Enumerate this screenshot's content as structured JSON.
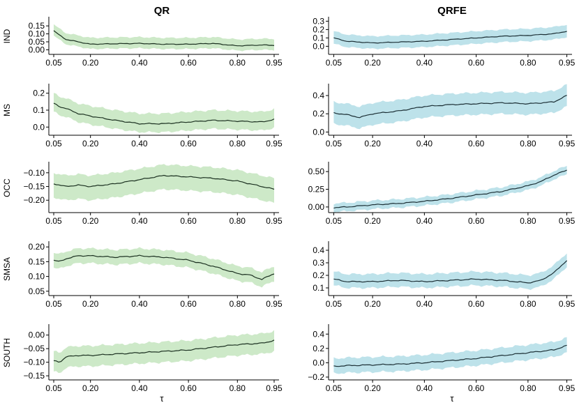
{
  "figure": {
    "columns": [
      {
        "title": "QR",
        "band_color": "#cde9c8",
        "line_color": "#1b3020"
      },
      {
        "title": "QRFE",
        "band_color": "#bde2ea",
        "line_color": "#1b2e34"
      }
    ],
    "xlabel": "τ"
  },
  "chart_data": [
    {
      "type": "line",
      "panel": "IND-QR",
      "row": 0,
      "col": 0,
      "ylabel": "IND",
      "xlim": [
        0.03,
        0.97
      ],
      "ylim": [
        -0.02,
        0.19
      ],
      "xticks": [
        0.05,
        0.2,
        0.4,
        0.6,
        0.8,
        0.95
      ],
      "xtick_labels": [
        "0.05",
        "0.20",
        "0.40",
        "0.60",
        "0.80",
        "0.95"
      ],
      "yticks": [
        0,
        0.05,
        0.1,
        0.15
      ],
      "ytick_labels": [
        "0.00",
        "0.05",
        "0.10",
        "0.15"
      ],
      "series": [
        {
          "name": "estimate",
          "x": [
            0.05,
            0.075,
            0.1,
            0.15,
            0.2,
            0.3,
            0.4,
            0.5,
            0.6,
            0.7,
            0.8,
            0.9,
            0.95
          ],
          "values": [
            0.12,
            0.09,
            0.065,
            0.05,
            0.035,
            0.038,
            0.04,
            0.035,
            0.035,
            0.04,
            0.025,
            0.03,
            0.028
          ]
        }
      ],
      "band": {
        "lower_offset": 0.03,
        "upper_offset": 0.04
      }
    },
    {
      "type": "line",
      "panel": "IND-QRFE",
      "row": 0,
      "col": 1,
      "ylabel": "",
      "xlim": [
        0.03,
        0.97
      ],
      "ylim": [
        -0.08,
        0.32
      ],
      "xticks": [
        0.05,
        0.2,
        0.4,
        0.6,
        0.8,
        0.95
      ],
      "xtick_labels": [
        "0.05",
        "0.20",
        "0.40",
        "0.60",
        "0.80",
        "0.95"
      ],
      "yticks": [
        0,
        0.1,
        0.2,
        0.3
      ],
      "ytick_labels": [
        "0.0",
        "0.1",
        "0.2",
        "0.3"
      ],
      "series": [
        {
          "name": "estimate",
          "x": [
            0.05,
            0.1,
            0.2,
            0.3,
            0.4,
            0.5,
            0.6,
            0.7,
            0.8,
            0.9,
            0.95
          ],
          "values": [
            0.1,
            0.06,
            0.04,
            0.05,
            0.06,
            0.08,
            0.1,
            0.12,
            0.13,
            0.15,
            0.18
          ]
        }
      ],
      "band": {
        "lower_offset": 0.07,
        "upper_offset": 0.08
      }
    },
    {
      "type": "line",
      "panel": "MS-QR",
      "row": 1,
      "col": 0,
      "ylabel": "MS",
      "xlim": [
        0.03,
        0.97
      ],
      "ylim": [
        -0.04,
        0.24
      ],
      "xticks": [
        0.05,
        0.2,
        0.4,
        0.6,
        0.8,
        0.95
      ],
      "xtick_labels": [
        "0.05",
        "0.20",
        "0.40",
        "0.60",
        "0.80",
        "0.95"
      ],
      "yticks": [
        0,
        0.1,
        0.2
      ],
      "ytick_labels": [
        "0.0",
        "0.1",
        "0.2"
      ],
      "series": [
        {
          "name": "estimate",
          "x": [
            0.05,
            0.075,
            0.1,
            0.15,
            0.2,
            0.3,
            0.4,
            0.5,
            0.6,
            0.7,
            0.8,
            0.9,
            0.95
          ],
          "values": [
            0.14,
            0.12,
            0.11,
            0.08,
            0.065,
            0.04,
            0.02,
            0.02,
            0.03,
            0.04,
            0.035,
            0.03,
            0.045
          ]
        }
      ],
      "band": {
        "lower_offset": 0.05,
        "upper_offset": 0.06
      }
    },
    {
      "type": "line",
      "panel": "MS-QRFE",
      "row": 1,
      "col": 1,
      "ylabel": "",
      "xlim": [
        0.03,
        0.97
      ],
      "ylim": [
        -0.02,
        0.5
      ],
      "xticks": [
        0.05,
        0.2,
        0.4,
        0.6,
        0.8,
        0.95
      ],
      "xtick_labels": [
        "0.05",
        "0.20",
        "0.40",
        "0.60",
        "0.80",
        "0.95"
      ],
      "yticks": [
        0,
        0.2,
        0.4
      ],
      "ytick_labels": [
        "0.0",
        "0.2",
        "0.4"
      ],
      "series": [
        {
          "name": "estimate",
          "x": [
            0.05,
            0.1,
            0.15,
            0.2,
            0.3,
            0.4,
            0.5,
            0.6,
            0.7,
            0.8,
            0.9,
            0.95
          ],
          "values": [
            0.21,
            0.19,
            0.16,
            0.2,
            0.23,
            0.28,
            0.3,
            0.31,
            0.32,
            0.31,
            0.33,
            0.4
          ]
        }
      ],
      "band": {
        "lower_offset": 0.12,
        "upper_offset": 0.12
      }
    },
    {
      "type": "line",
      "panel": "OCC-QR",
      "row": 2,
      "col": 0,
      "ylabel": "OCC",
      "xlim": [
        0.03,
        0.97
      ],
      "ylim": [
        -0.24,
        -0.07
      ],
      "xticks": [
        0.05,
        0.2,
        0.4,
        0.6,
        0.8,
        0.95
      ],
      "xtick_labels": [
        "0.05",
        "0.20",
        "0.40",
        "0.60",
        "0.80",
        "0.95"
      ],
      "yticks": [
        -0.1,
        -0.15,
        -0.2
      ],
      "ytick_labels": [
        "−0.10",
        "−0.15",
        "−0.20"
      ],
      "series": [
        {
          "name": "estimate",
          "x": [
            0.05,
            0.1,
            0.15,
            0.2,
            0.3,
            0.4,
            0.5,
            0.6,
            0.7,
            0.8,
            0.9,
            0.95
          ],
          "values": [
            -0.14,
            -0.15,
            -0.145,
            -0.15,
            -0.14,
            -0.125,
            -0.11,
            -0.115,
            -0.12,
            -0.13,
            -0.15,
            -0.16
          ]
        }
      ],
      "band": {
        "lower_offset": 0.05,
        "upper_offset": 0.04
      }
    },
    {
      "type": "line",
      "panel": "OCC-QRFE",
      "row": 2,
      "col": 1,
      "ylabel": "",
      "xlim": [
        0.03,
        0.97
      ],
      "ylim": [
        -0.06,
        0.6
      ],
      "xticks": [
        0.05,
        0.2,
        0.4,
        0.6,
        0.8,
        0.95
      ],
      "xtick_labels": [
        "0.05",
        "0.20",
        "0.40",
        "0.60",
        "0.80",
        "0.95"
      ],
      "yticks": [
        0,
        0.25,
        0.5
      ],
      "ytick_labels": [
        "0.00",
        "0.25",
        "0.50"
      ],
      "series": [
        {
          "name": "estimate",
          "x": [
            0.05,
            0.1,
            0.2,
            0.3,
            0.4,
            0.5,
            0.6,
            0.7,
            0.8,
            0.85,
            0.9,
            0.95
          ],
          "values": [
            -0.01,
            0.0,
            0.03,
            0.05,
            0.08,
            0.12,
            0.17,
            0.22,
            0.3,
            0.36,
            0.45,
            0.52
          ]
        }
      ],
      "band": {
        "lower_offset": 0.06,
        "upper_offset": 0.06
      }
    },
    {
      "type": "line",
      "panel": "SMSA-QR",
      "row": 3,
      "col": 0,
      "ylabel": "SMSA",
      "xlim": [
        0.03,
        0.97
      ],
      "ylim": [
        0.04,
        0.21
      ],
      "xticks": [
        0.05,
        0.2,
        0.4,
        0.6,
        0.8,
        0.95
      ],
      "xtick_labels": [
        "0.05",
        "0.20",
        "0.40",
        "0.60",
        "0.80",
        "0.95"
      ],
      "yticks": [
        0.05,
        0.1,
        0.15,
        0.2
      ],
      "ytick_labels": [
        "0.05",
        "0.10",
        "0.15",
        "0.20"
      ],
      "series": [
        {
          "name": "estimate",
          "x": [
            0.05,
            0.075,
            0.1,
            0.15,
            0.2,
            0.3,
            0.4,
            0.5,
            0.6,
            0.7,
            0.8,
            0.85,
            0.9,
            0.95
          ],
          "values": [
            0.155,
            0.15,
            0.16,
            0.17,
            0.17,
            0.165,
            0.17,
            0.165,
            0.155,
            0.135,
            0.11,
            0.105,
            0.09,
            0.11
          ]
        }
      ],
      "band": {
        "lower_offset": 0.025,
        "upper_offset": 0.025
      }
    },
    {
      "type": "line",
      "panel": "SMSA-QRFE",
      "row": 3,
      "col": 1,
      "ylabel": "",
      "xlim": [
        0.03,
        0.97
      ],
      "ylim": [
        0.05,
        0.45
      ],
      "xticks": [
        0.05,
        0.2,
        0.4,
        0.6,
        0.8,
        0.95
      ],
      "xtick_labels": [
        "0.05",
        "0.20",
        "0.40",
        "0.60",
        "0.80",
        "0.95"
      ],
      "yticks": [
        0.1,
        0.2,
        0.3,
        0.4
      ],
      "ytick_labels": [
        "0.1",
        "0.2",
        "0.3",
        "0.4"
      ],
      "series": [
        {
          "name": "estimate",
          "x": [
            0.05,
            0.1,
            0.2,
            0.3,
            0.4,
            0.5,
            0.6,
            0.7,
            0.8,
            0.85,
            0.9,
            0.95
          ],
          "values": [
            0.17,
            0.15,
            0.15,
            0.16,
            0.15,
            0.16,
            0.17,
            0.16,
            0.14,
            0.16,
            0.22,
            0.32
          ]
        }
      ],
      "band": {
        "lower_offset": 0.05,
        "upper_offset": 0.06
      }
    },
    {
      "type": "line",
      "panel": "SOUTH-QR",
      "row": 4,
      "col": 0,
      "ylabel": "SOUTH",
      "xlim": [
        0.03,
        0.97
      ],
      "ylim": [
        -0.16,
        0.03
      ],
      "xticks": [
        0.05,
        0.2,
        0.4,
        0.6,
        0.8,
        0.95
      ],
      "xtick_labels": [
        "0.05",
        "0.20",
        "0.40",
        "0.60",
        "0.80",
        "0.95"
      ],
      "yticks": [
        0,
        -0.05,
        -0.1,
        -0.15
      ],
      "ytick_labels": [
        "0.00",
        "−0.05",
        "−0.10",
        "−0.15"
      ],
      "series": [
        {
          "name": "estimate",
          "x": [
            0.05,
            0.075,
            0.1,
            0.15,
            0.2,
            0.3,
            0.4,
            0.5,
            0.6,
            0.7,
            0.8,
            0.9,
            0.95
          ],
          "values": [
            -0.095,
            -0.1,
            -0.08,
            -0.075,
            -0.075,
            -0.07,
            -0.065,
            -0.06,
            -0.055,
            -0.045,
            -0.035,
            -0.03,
            -0.02
          ]
        }
      ],
      "band": {
        "lower_offset": 0.04,
        "upper_offset": 0.035
      }
    },
    {
      "type": "line",
      "panel": "SOUTH-QRFE",
      "row": 4,
      "col": 1,
      "ylabel": "",
      "xlim": [
        0.03,
        0.97
      ],
      "ylim": [
        -0.22,
        0.5
      ],
      "xticks": [
        0.05,
        0.2,
        0.4,
        0.6,
        0.8,
        0.95
      ],
      "xtick_labels": [
        "0.05",
        "0.20",
        "0.40",
        "0.60",
        "0.80",
        "0.95"
      ],
      "yticks": [
        -0.2,
        0,
        0.2,
        0.4
      ],
      "ytick_labels": [
        "−0.2",
        "0.0",
        "0.2",
        "0.4"
      ],
      "series": [
        {
          "name": "estimate",
          "x": [
            0.05,
            0.1,
            0.2,
            0.3,
            0.4,
            0.5,
            0.6,
            0.7,
            0.8,
            0.9,
            0.95
          ],
          "values": [
            -0.05,
            -0.04,
            -0.03,
            -0.02,
            0.0,
            0.03,
            0.06,
            0.1,
            0.14,
            0.18,
            0.24
          ]
        }
      ],
      "band": {
        "lower_offset": 0.1,
        "upper_offset": 0.11
      }
    }
  ]
}
